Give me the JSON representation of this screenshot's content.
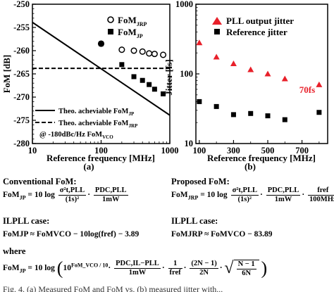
{
  "chart_data": [
    {
      "type": "scatter",
      "panel_label": "(a)",
      "xlabel": "Reference frequency [MHz]",
      "ylabel": "FoM [dB]",
      "xscale": "log",
      "xlim": [
        10,
        1000
      ],
      "ylim": [
        -280,
        -250
      ],
      "xticks": [
        "10",
        "100",
        "1000"
      ],
      "yticks": [
        "-250",
        "-255",
        "-260",
        "-265",
        "-270",
        "-275",
        "-280"
      ],
      "grid": false,
      "legend_top": [
        {
          "symbol": "open-circle",
          "label": "FoM",
          "sub": "JRP"
        },
        {
          "symbol": "filled-square",
          "label": "FoM",
          "sub": "JP"
        }
      ],
      "legend_bottom": [
        {
          "style": "solid",
          "label": "Theo. acheviable FoM",
          "sub": "JP"
        },
        {
          "style": "dashed",
          "label": "Theo. acheviable FoM",
          "sub": "JRP"
        },
        {
          "style": "none",
          "label": "@ -180dBc/Hz FoM",
          "sub": "VCO"
        }
      ],
      "series": [
        {
          "name": "FoMJRP",
          "marker": "open-circle",
          "x": [
            100,
            200,
            300,
            400,
            500,
            600,
            800
          ],
          "y": [
            -258.5,
            -259.8,
            -260.0,
            -260.2,
            -260.6,
            -260.7,
            -260.9
          ]
        },
        {
          "name": "FoMJP",
          "marker": "filled-square",
          "x": [
            100,
            200,
            300,
            400,
            500,
            600,
            800
          ],
          "y": [
            -258.5,
            -263.0,
            -265.6,
            -266.4,
            -267.3,
            -268.3,
            -269.3
          ]
        }
      ],
      "reference_lines": [
        {
          "name": "Theo. acheviable FoMJP",
          "style": "solid",
          "x": [
            10,
            1000
          ],
          "y": [
            -253.9,
            -273.9
          ]
        },
        {
          "name": "Theo. acheviable FoMJRP",
          "style": "dashed",
          "x": [
            10,
            1000
          ],
          "y": [
            -263.8,
            -263.8
          ]
        }
      ]
    },
    {
      "type": "scatter",
      "panel_label": "(b)",
      "xlabel": "Reference frequency [MHz]",
      "ylabel": "Jitter [fs]",
      "yscale": "log",
      "xlim": [
        80,
        850
      ],
      "ylim": [
        10,
        1000
      ],
      "xticks": [
        "100",
        "300",
        "500",
        "700"
      ],
      "yticks": [
        "10",
        "100",
        "1000"
      ],
      "grid": false,
      "legend_position": "top-right",
      "annotation": "70fs",
      "series": [
        {
          "name": "PLL output jitter",
          "marker": "triangle",
          "color": "#e8202a",
          "x": [
            100,
            200,
            300,
            400,
            500,
            600,
            800
          ],
          "y": [
            280,
            175,
            140,
            115,
            100,
            85,
            70
          ]
        },
        {
          "name": "Reference jitter",
          "marker": "filled-square",
          "color": "#000000",
          "x": [
            100,
            200,
            300,
            400,
            500,
            600,
            800
          ],
          "y": [
            40,
            34,
            26,
            27,
            25,
            22,
            28
          ]
        }
      ]
    }
  ],
  "equations": {
    "conventional_head": "Conventional FoM:",
    "proposed_head": "Proposed FoM:",
    "ilpll_head_left": "ILPLL case:",
    "ilpll_head_right": "ILPLL case:",
    "where_head": "where",
    "conv_lhs": "FoM",
    "conv_lhs_sub": "JP",
    "conv_eq": " = 10 log",
    "conv_num1": "σ²t,PLL",
    "conv_den1": "(1s)²",
    "conv_num2": "PDC,PLL",
    "conv_den2": "1mW",
    "prop_lhs": "FoM",
    "prop_lhs_sub": "JRP",
    "prop_eq": " = 10 log",
    "prop_num1": "σ²t,PLL",
    "prop_den1": "(1s)²",
    "prop_num2": "PDC,PLL",
    "prop_den2": "1mW",
    "prop_num3": "fref",
    "prop_den3": "100MHz",
    "il_left": "FoMJP ≈ FoMVCO − 10log(fref) − 3.89",
    "il_right": "FoMJRP ≈ FoMVCO − 83.89",
    "where_lhs": "FoM",
    "where_lhs_sub": "JP",
    "where_eq": " = 10 log",
    "where_exp": "FoM_VCO / 10",
    "where_num1": "PDC,IL−PLL",
    "where_den1": "1mW",
    "where_num2": "1",
    "where_den2": "fref",
    "where_num3": "(2N − 1)",
    "where_den3": "2N",
    "where_sqrt_num": "N − 1",
    "where_sqrt_den": "6N",
    "caption_fragment": "Fig. 4. (a) Measured FoM and FoM vs. (b) measured jitter with..."
  }
}
